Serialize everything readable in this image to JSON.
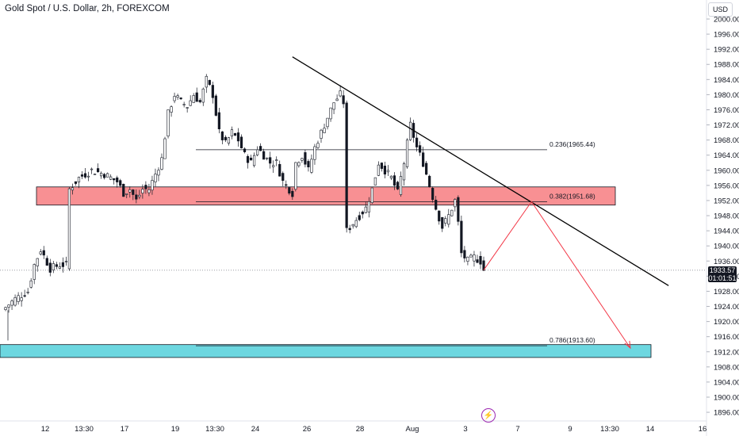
{
  "header": {
    "title": "Gold Spot / U.S. Dollar, 2h, FOREXCOM",
    "currency": "USD"
  },
  "price_label": {
    "price": "1933.57",
    "countdown": "01:01:51"
  },
  "colors": {
    "up": "#26a69a",
    "down": "#ef5350",
    "candle": "#131722",
    "resistance_zone": "#f77c80",
    "support_zone": "#5dd3dd",
    "projection": "#f23645",
    "trendline": "#000000"
  },
  "icons": {
    "bottom": "lightning-icon"
  },
  "chart_data": {
    "type": "candlestick",
    "title": "Gold Spot / U.S. Dollar, 2h, FOREXCOM",
    "xlabel": "",
    "ylabel": "",
    "ylim": [
      1894,
      2002
    ],
    "y_ticks": [
      "2000.00",
      "1996.00",
      "1992.00",
      "1988.00",
      "1984.00",
      "1980.00",
      "1976.00",
      "1972.00",
      "1968.00",
      "1964.00",
      "1960.00",
      "1956.00",
      "1952.00",
      "1948.00",
      "1944.00",
      "1940.00",
      "1936.00",
      "1932.00",
      "1928.00",
      "1924.00",
      "1920.00",
      "1916.00",
      "1912.00",
      "1908.00",
      "1904.00",
      "1900.00",
      "1896.00"
    ],
    "x_ticks": [
      "12",
      "13:30",
      "17",
      "19",
      "13:30",
      "24",
      "26",
      "28",
      "Aug",
      "3",
      "7",
      "9",
      "13:30",
      "14",
      "16"
    ],
    "close_path": [
      [
        0,
        1923
      ],
      [
        4,
        1926
      ],
      [
        8,
        1928
      ],
      [
        10,
        1935
      ],
      [
        12,
        1939
      ],
      [
        15,
        1934
      ],
      [
        18,
        1935
      ],
      [
        20,
        1935
      ],
      [
        21,
        1955
      ],
      [
        24,
        1958
      ],
      [
        28,
        1960
      ],
      [
        32,
        1959
      ],
      [
        36,
        1957
      ],
      [
        38,
        1954
      ],
      [
        40,
        1955
      ],
      [
        42,
        1952
      ],
      [
        44,
        1955
      ],
      [
        46,
        1955
      ],
      [
        48,
        1959
      ],
      [
        50,
        1963
      ],
      [
        52,
        1975
      ],
      [
        54,
        1980
      ],
      [
        56,
        1978
      ],
      [
        58,
        1977
      ],
      [
        60,
        1980
      ],
      [
        62,
        1978
      ],
      [
        64,
        1984
      ],
      [
        65,
        1982
      ],
      [
        66,
        1980
      ],
      [
        68,
        1970
      ],
      [
        70,
        1967
      ],
      [
        72,
        1970
      ],
      [
        74,
        1968
      ],
      [
        76,
        1964
      ],
      [
        78,
        1962
      ],
      [
        80,
        1966
      ],
      [
        82,
        1964
      ],
      [
        84,
        1962
      ],
      [
        86,
        1962
      ],
      [
        88,
        1957
      ],
      [
        90,
        1955
      ],
      [
        91,
        1954
      ],
      [
        92,
        1962
      ],
      [
        94,
        1964
      ],
      [
        96,
        1960
      ],
      [
        98,
        1966
      ],
      [
        100,
        1970
      ],
      [
        102,
        1974
      ],
      [
        104,
        1978
      ],
      [
        106,
        1980
      ],
      [
        107,
        1978
      ],
      [
        108,
        1944
      ],
      [
        110,
        1946
      ],
      [
        112,
        1948
      ],
      [
        114,
        1950
      ],
      [
        116,
        1955
      ],
      [
        118,
        1962
      ],
      [
        120,
        1960
      ],
      [
        122,
        1958
      ],
      [
        124,
        1954
      ],
      [
        126,
        1962
      ],
      [
        128,
        1972
      ],
      [
        130,
        1966
      ],
      [
        132,
        1962
      ],
      [
        134,
        1956
      ],
      [
        136,
        1950
      ],
      [
        138,
        1945
      ],
      [
        140,
        1948
      ],
      [
        142,
        1952
      ],
      [
        143,
        1946
      ],
      [
        144,
        1938
      ],
      [
        146,
        1936
      ],
      [
        148,
        1937
      ],
      [
        150,
        1936
      ],
      [
        151,
        1933.57
      ]
    ],
    "series": [
      {
        "name": "Fibonacci 0.236",
        "values": [
          1965.44
        ],
        "label": "0.236(1965.44)"
      },
      {
        "name": "Fibonacci 0.382",
        "values": [
          1951.68
        ],
        "label": "0.382(1951.68)"
      },
      {
        "name": "Fibonacci 0.786",
        "values": [
          1913.6
        ],
        "label": "0.786(1913.60)"
      }
    ],
    "zones": [
      {
        "name": "resistance",
        "from": 1950.8,
        "to": 1955.6
      },
      {
        "name": "support",
        "from": 1910.5,
        "to": 1913.9
      }
    ],
    "trendline": [
      [
        91,
        1990
      ],
      [
        209,
        1929.5
      ]
    ],
    "projection": [
      [
        151,
        1933.6
      ],
      [
        166,
        1951.7
      ],
      [
        197,
        1913
      ]
    ],
    "last_price": 1933.57
  }
}
